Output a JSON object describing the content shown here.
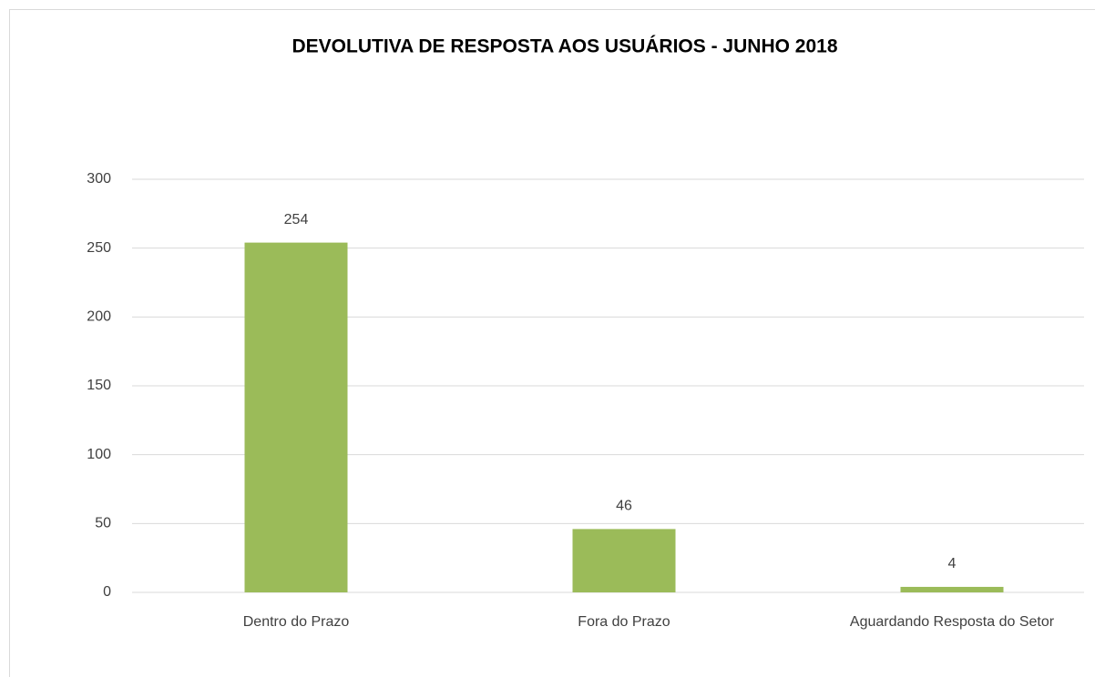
{
  "chart_data": {
    "type": "bar",
    "title": "DEVOLUTIVA DE RESPOSTA AOS USUÁRIOS - JUNHO 2018",
    "categories": [
      "Dentro do Prazo",
      "Fora do Prazo",
      "Aguardando Resposta do Setor"
    ],
    "values": [
      254,
      46,
      4
    ],
    "color": "#9bbb59",
    "ylim": [
      0,
      300
    ],
    "yticks": [
      0,
      50,
      100,
      150,
      200,
      250,
      300
    ],
    "grid": true
  }
}
